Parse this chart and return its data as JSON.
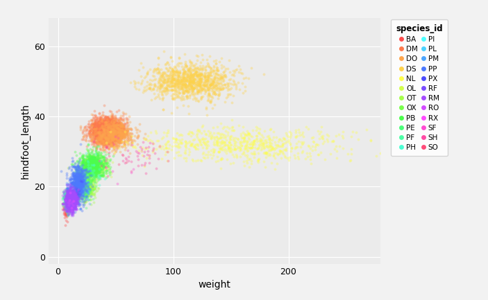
{
  "xlabel": "weight",
  "ylabel": "hindfoot_length",
  "legend_title": "species_id",
  "xlim": [
    -8,
    280
  ],
  "ylim": [
    -2,
    68
  ],
  "xticks": [
    0,
    100,
    200
  ],
  "yticks": [
    0,
    20,
    40,
    60
  ],
  "bg_color": "#ebebeb",
  "grid_color": "#ffffff",
  "alpha": 0.35,
  "point_size": 8,
  "fig_bg": "#f2f2f2",
  "species": [
    {
      "id": "BA",
      "color": "#F8766D",
      "weight_mean": 7,
      "weight_std": 1.5,
      "hf_mean": 13,
      "hf_std": 1.5,
      "n": 45
    },
    {
      "id": "DM",
      "color": "#E58700",
      "weight_mean": 42,
      "weight_std": 7,
      "hf_mean": 36,
      "hf_std": 1.8,
      "n": 2200
    },
    {
      "id": "DO",
      "color": "#C99800",
      "weight_mean": 48,
      "weight_std": 9,
      "hf_mean": 35,
      "hf_std": 2.0,
      "n": 700
    },
    {
      "id": "DS",
      "color": "#A3A500",
      "weight_mean": 115,
      "weight_std": 18,
      "hf_mean": 50,
      "hf_std": 2.5,
      "n": 1200
    },
    {
      "id": "NL",
      "color": "#6BB100",
      "weight_mean": 155,
      "weight_std": 45,
      "hf_mean": 32,
      "hf_std": 2.5,
      "n": 700
    },
    {
      "id": "OL",
      "color": "#00BA38",
      "weight_mean": 32,
      "weight_std": 6,
      "hf_mean": 26,
      "hf_std": 1.5,
      "n": 300
    },
    {
      "id": "OT",
      "color": "#00C19A",
      "weight_mean": 24,
      "weight_std": 4,
      "hf_mean": 20,
      "hf_std": 1.5,
      "n": 700
    },
    {
      "id": "OX",
      "color": "#00BFC4",
      "weight_mean": 21,
      "weight_std": 4,
      "hf_mean": 19,
      "hf_std": 1.5,
      "n": 18
    },
    {
      "id": "PB",
      "color": "#00B8FF",
      "weight_mean": 30,
      "weight_std": 6,
      "hf_mean": 26,
      "hf_std": 1.8,
      "n": 800
    },
    {
      "id": "PE",
      "color": "#619CFF",
      "weight_mean": 22,
      "weight_std": 4,
      "hf_mean": 20,
      "hf_std": 2.0,
      "n": 200
    },
    {
      "id": "PF",
      "color": "#B983FF",
      "weight_mean": 8,
      "weight_std": 1.5,
      "hf_mean": 16,
      "hf_std": 1.5,
      "n": 350
    },
    {
      "id": "PH",
      "color": "#E76BF3",
      "weight_mean": 30,
      "weight_std": 5,
      "hf_mean": 25,
      "hf_std": 2.5,
      "n": 25
    },
    {
      "id": "PI",
      "color": "#F0624D",
      "weight_mean": 18,
      "weight_std": 3,
      "hf_mean": 22,
      "hf_std": 2.5,
      "n": 8
    },
    {
      "id": "PL",
      "color": "#FF62BC",
      "weight_mean": 19,
      "weight_std": 3,
      "hf_mean": 20,
      "hf_std": 2.0,
      "n": 8
    },
    {
      "id": "PM",
      "color": "#FF6C90",
      "weight_mean": 21,
      "weight_std": 4,
      "hf_mean": 20,
      "hf_std": 2.0,
      "n": 100
    },
    {
      "id": "PP",
      "color": "#FF6A71",
      "weight_mean": 17,
      "weight_std": 4,
      "hf_mean": 21,
      "hf_std": 2.5,
      "n": 600
    },
    {
      "id": "PX",
      "color": "#D39200",
      "weight_mean": 19,
      "weight_std": 3,
      "hf_mean": 19,
      "hf_std": 2.0,
      "n": 8
    },
    {
      "id": "RF",
      "color": "#93AA00",
      "weight_mean": 14,
      "weight_std": 2.5,
      "hf_mean": 17,
      "hf_std": 1.5,
      "n": 50
    },
    {
      "id": "RM",
      "color": "#00B9E3",
      "weight_mean": 11,
      "weight_std": 2.5,
      "hf_mean": 16,
      "hf_std": 1.5,
      "n": 900
    },
    {
      "id": "RO",
      "color": "#DB72FB",
      "weight_mean": 10,
      "weight_std": 2.5,
      "hf_mean": 15,
      "hf_std": 1.5,
      "n": 8
    },
    {
      "id": "RX",
      "color": "#FF61C3",
      "weight_mean": 11,
      "weight_std": 2,
      "hf_mean": 17,
      "hf_std": 1.5,
      "n": 4
    },
    {
      "id": "SF",
      "color": "#F8766D",
      "weight_mean": 49,
      "weight_std": 9,
      "hf_mean": 26,
      "hf_std": 2.5,
      "n": 8
    },
    {
      "id": "SH",
      "color": "#E58700",
      "weight_mean": 73,
      "weight_std": 14,
      "hf_mean": 29,
      "hf_std": 2.5,
      "n": 50
    },
    {
      "id": "SO",
      "color": "#C99800",
      "weight_mean": 55,
      "weight_std": 11,
      "hf_mean": 26,
      "hf_std": 2.5,
      "n": 8
    }
  ]
}
